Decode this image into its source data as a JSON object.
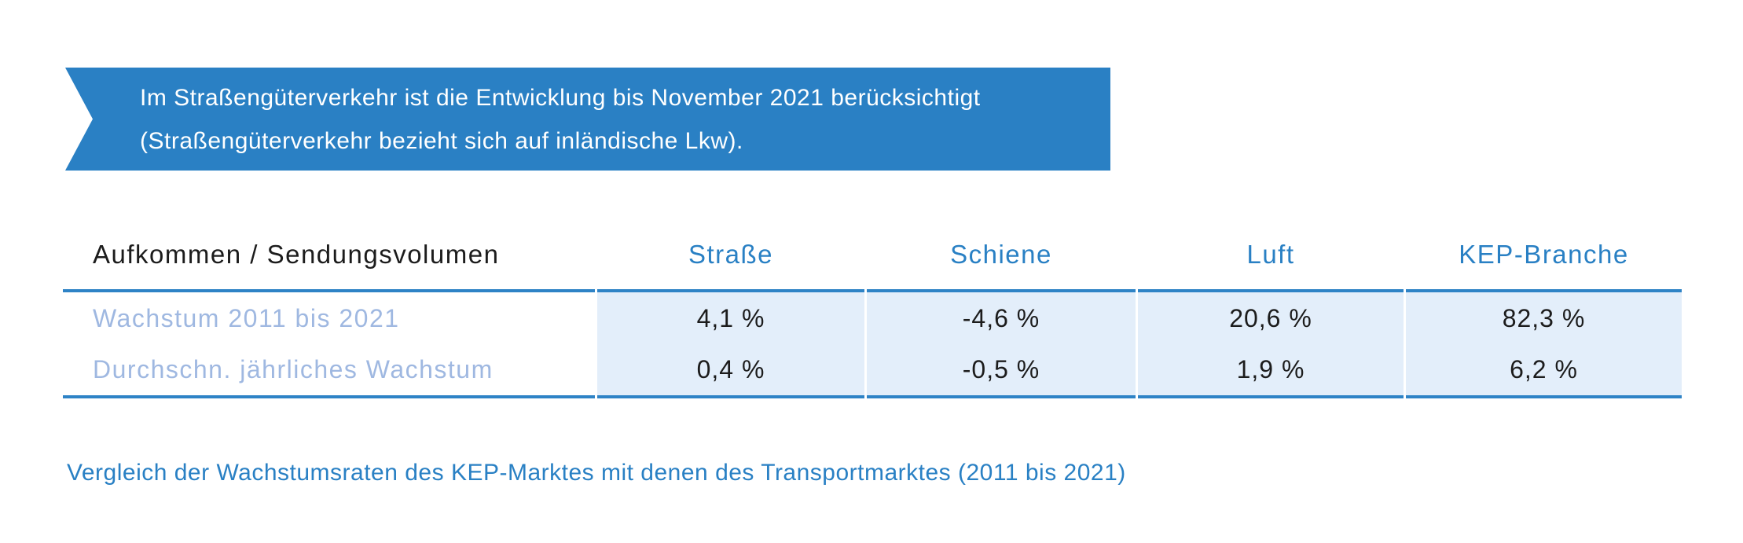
{
  "banner": {
    "line1": "Im Straßengüterverkehr ist die Entwicklung bis November 2021 berücksichtigt",
    "line2": "(Straßengüterverkehr bezieht sich auf inländische Lkw).",
    "background_color": "#2a80c4",
    "text_color": "#ffffff"
  },
  "table": {
    "header": {
      "label": "Aufkommen / Sendungsvolumen",
      "columns": [
        "Straße",
        "Schiene",
        "Luft",
        "KEP-Branche"
      ]
    },
    "rows": [
      {
        "label": "Wachstum 2011 bis 2021",
        "values": [
          "4,1 %",
          "-4,6 %",
          "20,6 %",
          "82,3 %"
        ]
      },
      {
        "label": "Durchschn. jährliches Wachstum",
        "values": [
          "0,4 %",
          "-0,5 %",
          "1,9 %",
          "6,2 %"
        ]
      }
    ],
    "accent_color": "#2980c4",
    "rule_color": "#2e83c6",
    "highlight_bg_color": "#e3eefa",
    "row_label_color": "#9fb8e1"
  },
  "caption": {
    "text": "Vergleich der Wachstumsraten des KEP-Marktes mit denen des Transportmarktes (2011 bis 2021)"
  },
  "chart_data": {
    "type": "table",
    "title": "Aufkommen / Sendungsvolumen",
    "columns": [
      "Straße",
      "Schiene",
      "Luft",
      "KEP-Branche"
    ],
    "rows": [
      {
        "label": "Wachstum 2011 bis 2021",
        "values_percent": [
          4.1,
          -4.6,
          20.6,
          82.3
        ]
      },
      {
        "label": "Durchschn. jährliches Wachstum",
        "values_percent": [
          0.4,
          -0.5,
          1.9,
          6.2
        ]
      }
    ],
    "note": "Im Straßengüterverkehr ist die Entwicklung bis November 2021 berücksichtigt (Straßengüterverkehr bezieht sich auf inländische Lkw).",
    "caption": "Vergleich der Wachstumsraten des KEP-Marktes mit denen des Transportmarktes (2011 bis 2021)"
  }
}
